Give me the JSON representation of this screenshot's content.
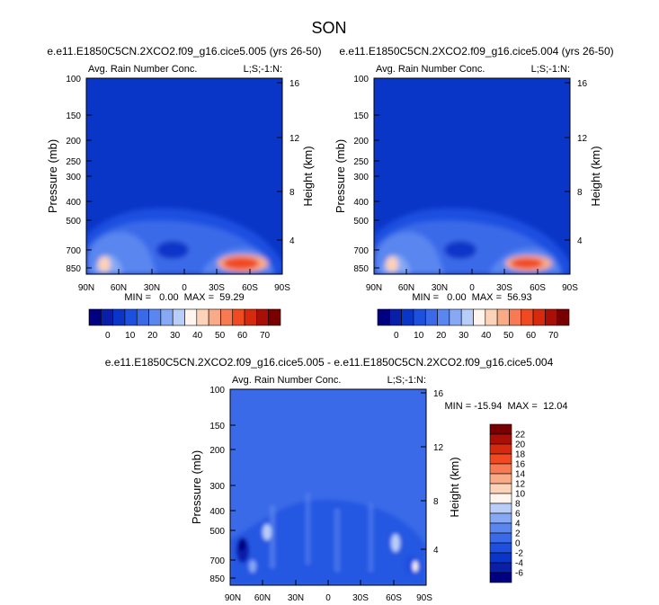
{
  "colors": {
    "bg": "#0a36c8",
    "bg_diff": "#3a6ae8",
    "palette_top": [
      "#000080",
      "#0a1fa8",
      "#0a36c8",
      "#1e50e0",
      "#3a6ae8",
      "#5a86f0",
      "#86a8f5",
      "#b8cef8",
      "#fff5ee",
      "#fcd2b8",
      "#f9ab87",
      "#f77a52",
      "#f04a22",
      "#d62a0e",
      "#a80f06",
      "#780000"
    ],
    "palette_diff": [
      "#000080",
      "#0a1fa8",
      "#0a36c8",
      "#1e50e0",
      "#3a6ae8",
      "#5a86f0",
      "#86a8f5",
      "#b8cef8",
      "#fff5ee",
      "#fcd2b8",
      "#f9ab87",
      "#f77a52",
      "#f04a22",
      "#d62a0e",
      "#a80f06",
      "#780000"
    ]
  },
  "figure": {
    "title": "SON"
  },
  "chart_data": [
    {
      "type": "heatmap",
      "title": "e.e11.E1850C5CN.2XCO2.f09_g16.cice5.005 (yrs 26-50)",
      "left_label": "Avg. Rain Number Conc.",
      "right_label": "L;S;-1:N:",
      "xlabel": "",
      "ylabel": "Pressure (mb)",
      "ylabel_right": "Height (km)",
      "xticks": [
        "90N",
        "60N",
        "30N",
        "0",
        "30S",
        "60S",
        "90S"
      ],
      "yticks": [
        "100",
        "150",
        "200",
        "250",
        "300",
        "400",
        "500",
        "700",
        "850"
      ],
      "yticks_right": [
        "16",
        "12",
        "8",
        "4"
      ],
      "stats": "MIN =   0.00  MAX =  59.29",
      "min": 0.0,
      "max": 59.29,
      "colorbar_labels": [
        "0",
        "10",
        "20",
        "30",
        "40",
        "50",
        "60",
        "70"
      ]
    },
    {
      "type": "heatmap",
      "title": "e.e11.E1850C5CN.2XCO2.f09_g16.cice5.004 (yrs 26-50)",
      "left_label": "Avg. Rain Number Conc.",
      "right_label": "L;S;-1:N:",
      "xlabel": "",
      "ylabel": "Pressure (mb)",
      "ylabel_right": "Height (km)",
      "xticks": [
        "90N",
        "60N",
        "30N",
        "0",
        "30S",
        "60S",
        "90S"
      ],
      "yticks": [
        "100",
        "150",
        "200",
        "250",
        "300",
        "400",
        "500",
        "700",
        "850"
      ],
      "yticks_right": [
        "16",
        "12",
        "8",
        "4"
      ],
      "stats": "MIN =   0.00  MAX =  56.93",
      "min": 0.0,
      "max": 56.93,
      "colorbar_labels": [
        "0",
        "10",
        "20",
        "30",
        "40",
        "50",
        "60",
        "70"
      ]
    },
    {
      "type": "heatmap",
      "title": "e.e11.E1850C5CN.2XCO2.f09_g16.cice5.005 - e.e11.E1850C5CN.2XCO2.f09_g16.cice5.004",
      "left_label": "Avg. Rain Number Conc.",
      "right_label": "L;S;-1:N:",
      "xlabel": "",
      "ylabel": "Pressure (mb)",
      "ylabel_right": "Height (km)",
      "xticks": [
        "90N",
        "60N",
        "30N",
        "0",
        "30S",
        "60S",
        "90S"
      ],
      "yticks": [
        "100",
        "150",
        "200",
        "300",
        "400",
        "500",
        "700",
        "850"
      ],
      "yticks_right": [
        "16",
        "12",
        "8",
        "4"
      ],
      "stats": "MIN = -15.94  MAX =  12.04",
      "min": -15.94,
      "max": 12.04,
      "colorbar_labels": [
        "22",
        "20",
        "18",
        "16",
        "14",
        "12",
        "10",
        "8",
        "6",
        "4",
        "2",
        "0",
        "-2",
        "-4",
        "-6"
      ]
    }
  ]
}
